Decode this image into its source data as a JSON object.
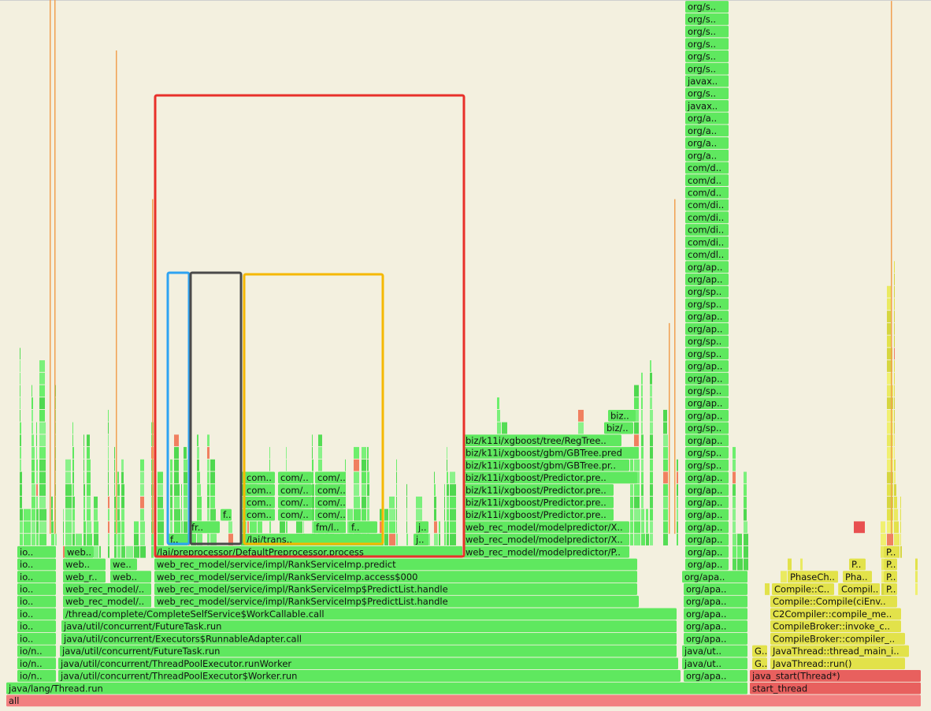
{
  "frames": [
    "all",
    "java/lang/Thread.run",
    "start_thread",
    "io/n..",
    "java/util/concurrent/ThreadPoolExecutor$Worker.run",
    "org/apa..",
    "java_start(Thread*)",
    "io/n..",
    "java/util/concurrent/ThreadPoolExecutor.runWorker",
    "java/ut..",
    "G..",
    "JavaThread::run()",
    "io/n..",
    "java/util/concurrent/FutureTask.run",
    "java/ut..",
    "G..",
    "JavaThread::thread_main_i..",
    "io..",
    "java/util/concurrent/Executors$RunnableAdapter.call",
    "org/apa..",
    "CompileBroker::compiler_..",
    "io..",
    "java/util/concurrent/FutureTask.run",
    "org/apa..",
    "CompileBroker::invoke_c..",
    "io..",
    "/thread/complete/CompleteSelfService$WorkCallable.call",
    "org/apa..",
    "C2Compiler::compile_me..",
    "io..",
    "web_rec_model/..",
    "web_rec_model/service/impl/RankServiceImp$PredictList.handle",
    "org/apa..",
    "Compile::Compile(ciEnv..",
    "io..",
    "web_rec_model/..",
    "web_rec_model/service/impl/RankServiceImp$PredictList.handle",
    "org/apa..",
    "Compile::C..",
    "Compil..",
    "P..",
    "io..",
    "web_r..",
    "web..",
    "web_rec_model/service/impl/RankServiceImp.access$000",
    "org/apa..",
    "PhaseCh..",
    "Pha..",
    "P..",
    "io..",
    "web..",
    "we..",
    "web_rec_model/service/impl/RankServiceImp.predict",
    "P..",
    "P..",
    "io..",
    "web..",
    "/lai/preprocessor/DefaultPreprocessor.process",
    "web_rec_model/modelpredictor/P..",
    "P..",
    "f..",
    "/lai/trans..",
    "j..",
    "web_rec_model/modelpredictor/X..",
    "fr..",
    "fm/l..",
    "f..",
    "j..",
    "web_rec_model/modelpredictor/X..",
    "f..",
    "com..",
    "com/..",
    "com/..",
    "biz/k11i/xgboost/Predictor.pre..",
    "com..",
    "com/..",
    "com/..",
    "biz/k11i/xgboost/Predictor.pre..",
    "com..",
    "com/..",
    "com/..",
    "biz/k11i/xgboost/Predictor.pre..",
    "com..",
    "com/..",
    "com/..",
    "biz/k11i/xgboost/Predictor.pre..",
    "biz/k11i/xgboost/gbm/GBTree.pr..",
    "biz/k11i/xgboost/gbm/GBTree.pred",
    "biz/k11i/xgboost/tree/RegTree..",
    "biz/..",
    "biz.."
  ],
  "column": [
    "org/s..",
    "org/s..",
    "org/s..",
    "org/s..",
    "org/s..",
    "org/s..",
    "javax..",
    "org/s..",
    "javax..",
    "org/a..",
    "org/a..",
    "org/a..",
    "org/a..",
    "com/d..",
    "com/d..",
    "com/d..",
    "com/di..",
    "com/di..",
    "com/di..",
    "com/di..",
    "com/dl..",
    "org/ap..",
    "org/ap..",
    "org/sp..",
    "org/sp..",
    "org/ap..",
    "org/ap..",
    "org/sp..",
    "org/sp..",
    "org/ap..",
    "org/ap..",
    "org/sp..",
    "org/ap..",
    "org/ap..",
    "org/sp..",
    "org/ap..",
    "org/sp..",
    "org/sp..",
    "org/ap..",
    "org/ap..",
    "org/ap..",
    "org/ap..",
    "org/ap..",
    "org/ap..",
    "org/ap..",
    "org/ap.."
  ]
}
